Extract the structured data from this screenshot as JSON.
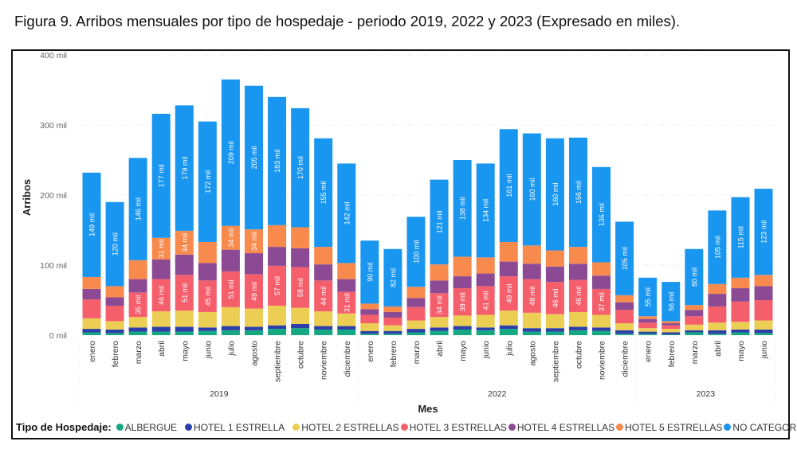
{
  "title": "Figura 9. Arribos mensuales por tipo de hospedaje - periodo 2019, 2022 y 2023 (Expresado en miles).",
  "chart_data": {
    "type": "bar",
    "stacked": true,
    "xlabel": "Mes",
    "ylabel": "Arribos",
    "ylim": [
      0,
      400
    ],
    "yticks": [
      0,
      100,
      200,
      300,
      400
    ],
    "ytick_labels": [
      "0 mil",
      "100 mil",
      "200 mil",
      "300 mil",
      "400 mil"
    ],
    "grid": true,
    "legend_title": "Tipo de Hospedaje:",
    "legend_position": "bottom",
    "label_suffix": " mil",
    "year_groups": [
      {
        "year": "2019",
        "months": [
          "enero",
          "febrero",
          "marzo",
          "abril",
          "mayo",
          "junio",
          "julio",
          "agosto",
          "septiembre",
          "octubre",
          "noviembre",
          "diciembre"
        ]
      },
      {
        "year": "2022",
        "months": [
          "enero",
          "febrero",
          "marzo",
          "abril",
          "mayo",
          "junio",
          "julio",
          "agosto",
          "septiembre",
          "octubre",
          "noviembre",
          "diciembre"
        ]
      },
      {
        "year": "2023",
        "months": [
          "enero",
          "febrero",
          "marzo",
          "abril",
          "mayo",
          "junio"
        ]
      }
    ],
    "series": [
      {
        "name": "ALBERGUE",
        "color": "#16A883",
        "values": [
          4,
          3,
          5,
          5,
          5,
          6,
          7,
          7,
          9,
          10,
          8,
          8,
          2,
          2,
          4,
          6,
          8,
          7,
          9,
          5,
          5,
          7,
          6,
          2,
          2,
          1,
          4,
          2,
          4,
          3
        ],
        "labels": [
          null,
          null,
          null,
          null,
          null,
          null,
          null,
          null,
          null,
          null,
          null,
          null,
          null,
          null,
          null,
          null,
          null,
          null,
          null,
          null,
          null,
          null,
          null,
          null,
          null,
          null,
          null,
          null,
          null,
          null
        ]
      },
      {
        "name": "HOTEL 1 ESTRELLA",
        "color": "#2C3FA8",
        "values": [
          5,
          5,
          6,
          7,
          7,
          5,
          6,
          5,
          5,
          6,
          5,
          5,
          4,
          4,
          5,
          5,
          5,
          4,
          5,
          5,
          5,
          5,
          5,
          5,
          3,
          3,
          3,
          5,
          4,
          5
        ],
        "labels": [
          null,
          null,
          null,
          null,
          null,
          null,
          null,
          null,
          null,
          null,
          null,
          null,
          null,
          null,
          null,
          null,
          null,
          null,
          null,
          null,
          null,
          null,
          null,
          null,
          null,
          null,
          null,
          null,
          null,
          null
        ]
      },
      {
        "name": "HOTEL 2 ESTRELLAS",
        "color": "#EDCE55",
        "values": [
          15,
          12,
          15,
          22,
          23,
          22,
          27,
          26,
          28,
          23,
          21,
          18,
          11,
          8,
          12,
          15,
          15,
          18,
          21,
          22,
          20,
          21,
          18,
          10,
          5,
          5,
          8,
          11,
          11,
          13
        ],
        "labels": [
          null,
          null,
          null,
          null,
          null,
          null,
          null,
          null,
          null,
          null,
          null,
          null,
          null,
          null,
          null,
          null,
          null,
          null,
          null,
          null,
          null,
          null,
          null,
          null,
          null,
          null,
          null,
          null,
          null,
          null
        ]
      },
      {
        "name": "HOTEL 3 ESTRELLAS",
        "color": "#F55F6C",
        "values": [
          27,
          22,
          35,
          46,
          51,
          45,
          51,
          49,
          57,
          58,
          44,
          31,
          12,
          11,
          19,
          34,
          39,
          41,
          49,
          48,
          46,
          46,
          37,
          19,
          8,
          5,
          12,
          23,
          29,
          29
        ],
        "labels": [
          null,
          null,
          35,
          46,
          51,
          45,
          51,
          49,
          57,
          58,
          44,
          31,
          null,
          null,
          null,
          34,
          39,
          41,
          49,
          48,
          46,
          46,
          37,
          null,
          null,
          null,
          null,
          null,
          null,
          null
        ]
      },
      {
        "name": "HOTEL 4 ESTRELLAS",
        "color": "#8B4A93",
        "values": [
          15,
          12,
          19,
          28,
          29,
          25,
          31,
          30,
          27,
          27,
          23,
          18,
          8,
          8,
          13,
          18,
          17,
          18,
          21,
          22,
          22,
          23,
          19,
          11,
          5,
          3,
          9,
          18,
          19,
          20
        ],
        "labels": [
          null,
          null,
          null,
          null,
          null,
          null,
          null,
          null,
          null,
          null,
          null,
          null,
          null,
          null,
          null,
          null,
          null,
          null,
          null,
          null,
          null,
          null,
          null,
          null,
          null,
          null,
          null,
          null,
          null,
          null
        ]
      },
      {
        "name": "HOTEL 5 ESTRELLAS",
        "color": "#F98A4D",
        "values": [
          17,
          16,
          27,
          31,
          34,
          30,
          34,
          34,
          31,
          30,
          25,
          23,
          8,
          8,
          16,
          23,
          28,
          23,
          28,
          26,
          23,
          24,
          19,
          10,
          4,
          3,
          7,
          14,
          15,
          16
        ],
        "labels": [
          null,
          null,
          null,
          31,
          34,
          null,
          34,
          34,
          null,
          null,
          null,
          null,
          null,
          null,
          null,
          null,
          null,
          null,
          null,
          null,
          null,
          null,
          null,
          null,
          null,
          null,
          null,
          null,
          null,
          null
        ]
      },
      {
        "name": "NO CATEGORIZADO",
        "color": "#1996F0",
        "values": [
          149,
          120,
          146,
          177,
          179,
          172,
          209,
          205,
          183,
          170,
          155,
          142,
          90,
          82,
          100,
          121,
          138,
          134,
          161,
          160,
          160,
          156,
          136,
          105,
          55,
          56,
          80,
          105,
          115,
          123
        ],
        "labels": [
          149,
          120,
          146,
          177,
          179,
          172,
          209,
          205,
          183,
          170,
          155,
          142,
          90,
          82,
          100,
          121,
          138,
          134,
          161,
          160,
          160,
          156,
          136,
          105,
          55,
          56,
          80,
          105,
          115,
          123
        ]
      }
    ]
  }
}
